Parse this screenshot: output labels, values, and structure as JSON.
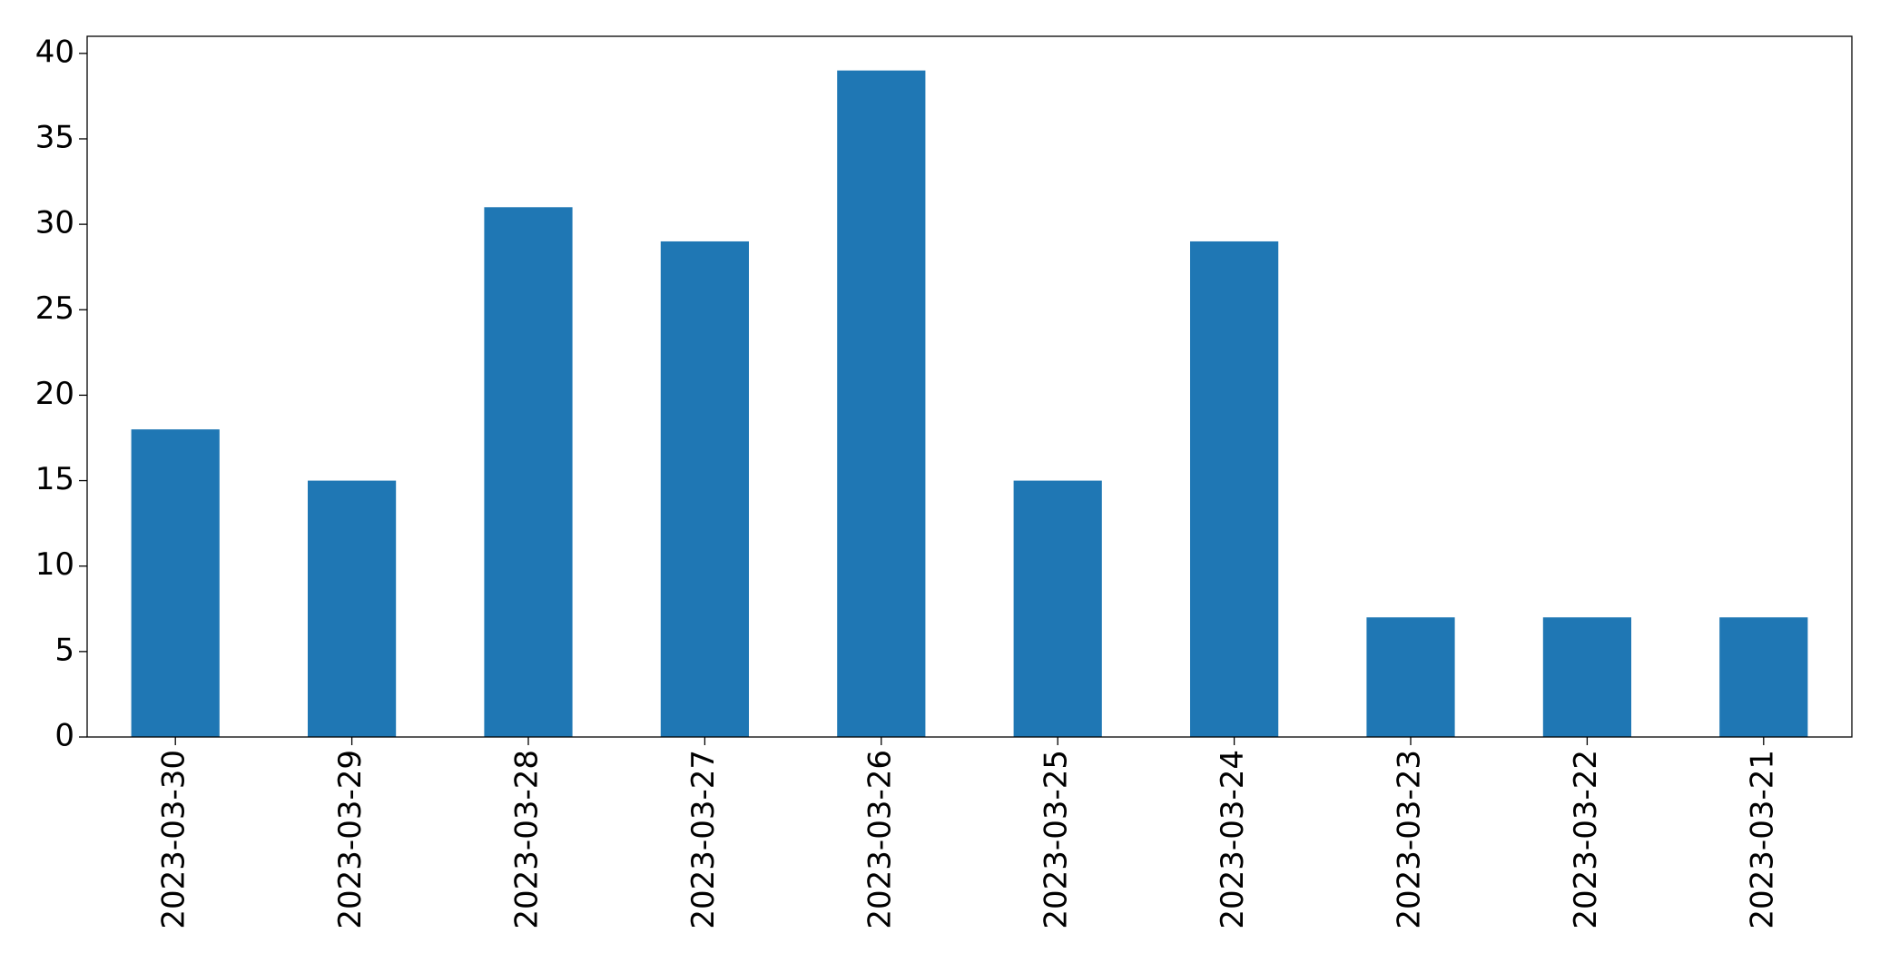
{
  "chart_data": {
    "type": "bar",
    "categories": [
      "2023-03-30",
      "2023-03-29",
      "2023-03-28",
      "2023-03-27",
      "2023-03-26",
      "2023-03-25",
      "2023-03-24",
      "2023-03-23",
      "2023-03-22",
      "2023-03-21"
    ],
    "values": [
      18,
      15,
      31,
      29,
      39,
      15,
      29,
      7,
      7,
      7
    ],
    "color": "#1f77b4",
    "ylim": [
      0,
      41
    ],
    "yticks": [
      0,
      5,
      10,
      15,
      20,
      25,
      30,
      35,
      40
    ],
    "grid": false
  }
}
